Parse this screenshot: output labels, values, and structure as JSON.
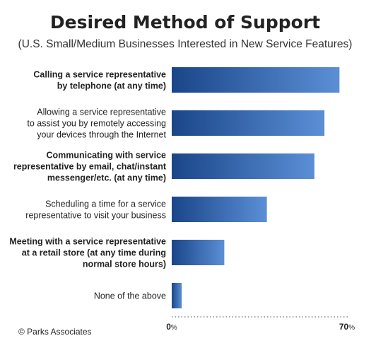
{
  "chart_data": {
    "type": "bar",
    "orientation": "horizontal",
    "title": "Desired Method of Support",
    "subtitle": "(U.S. Small/Medium Businesses Interested in New Service Features)",
    "categories": [
      [
        "Calling a service representative",
        "by telephone (at any time)"
      ],
      [
        "Allowing a service representative",
        "to assist you by remotely accessing",
        "your devices through the Internet"
      ],
      [
        "Communicating with service",
        "representative by email, chat/instant",
        "messenger/etc. (at any time)"
      ],
      [
        "Scheduling a time for a service",
        "representative to visit your business"
      ],
      [
        "Meeting with a service representative",
        "at a retail store (at any time during",
        "normal store hours)"
      ],
      [
        "None of the above"
      ]
    ],
    "category_bold": [
      true,
      false,
      true,
      false,
      true,
      false
    ],
    "values": [
      67,
      61,
      57,
      38,
      21,
      4
    ],
    "xlim": [
      0,
      70
    ],
    "x_ticks": [
      {
        "num": "0",
        "unit": "%"
      },
      {
        "num": "70",
        "unit": "%"
      }
    ],
    "grid": false,
    "legend": "none",
    "colors": {
      "bar_dark": "#1a4589",
      "bar_light": "#5b8fd6",
      "axis_dots": "#888888"
    }
  },
  "footer": {
    "credit": "© Parks Associates"
  }
}
